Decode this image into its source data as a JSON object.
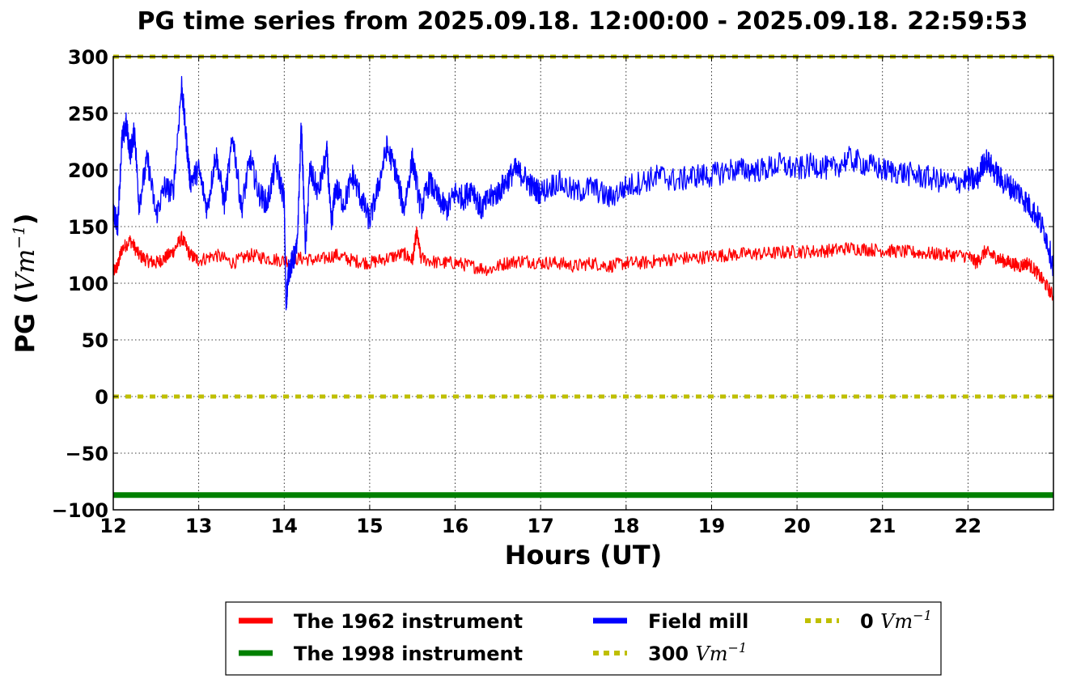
{
  "chart_data": {
    "type": "line",
    "title": "PG time series from 2025.09.18. 12:00:00 - 2025.09.18. 22:59:53",
    "xlabel": "Hours (UT)",
    "ylabel": {
      "prefix": "PG (",
      "unit": "Vm",
      "exp": "−1",
      "suffix": ")"
    },
    "xlim": [
      12,
      23
    ],
    "ylim": [
      -100,
      300
    ],
    "xticks": [
      12,
      13,
      14,
      15,
      16,
      17,
      18,
      19,
      20,
      21,
      22
    ],
    "xtick_labels": [
      "12",
      "13",
      "14",
      "15",
      "16",
      "17",
      "18",
      "19",
      "20",
      "21",
      "22"
    ],
    "yticks": [
      300,
      250,
      200,
      150,
      100,
      50,
      0,
      -50,
      -100
    ],
    "ytick_labels": [
      "300",
      "250",
      "200",
      "150",
      "100",
      "50",
      "0",
      "−50",
      "−100"
    ],
    "grid": true,
    "legend_placement": "bottom-center",
    "series": [
      {
        "name": "Field mill",
        "color": "#0000ff",
        "style": "solid",
        "x": [
          12.0,
          12.05,
          12.1,
          12.15,
          12.2,
          12.25,
          12.3,
          12.4,
          12.5,
          12.6,
          12.7,
          12.8,
          12.85,
          12.9,
          13.0,
          13.1,
          13.2,
          13.3,
          13.4,
          13.5,
          13.6,
          13.7,
          13.8,
          13.9,
          14.0,
          14.02,
          14.05,
          14.1,
          14.15,
          14.2,
          14.25,
          14.3,
          14.4,
          14.5,
          14.55,
          14.6,
          14.7,
          14.8,
          14.9,
          15.0,
          15.1,
          15.2,
          15.3,
          15.4,
          15.5,
          15.6,
          15.7,
          15.8,
          15.9,
          16.0,
          16.1,
          16.2,
          16.3,
          16.4,
          16.5,
          16.6,
          16.7,
          16.8,
          16.9,
          17.0,
          17.2,
          17.4,
          17.6,
          17.8,
          18.0,
          18.2,
          18.4,
          18.6,
          18.8,
          19.0,
          19.2,
          19.4,
          19.6,
          19.8,
          20.0,
          20.2,
          20.4,
          20.6,
          20.8,
          21.0,
          21.2,
          21.4,
          21.6,
          21.8,
          22.0,
          22.1,
          22.2,
          22.3,
          22.4,
          22.5,
          22.6,
          22.7,
          22.8,
          22.9,
          23.0
        ],
        "y": [
          165,
          150,
          225,
          240,
          215,
          235,
          170,
          210,
          160,
          185,
          180,
          275,
          230,
          190,
          200,
          165,
          215,
          170,
          230,
          165,
          210,
          180,
          170,
          205,
          175,
          80,
          110,
          120,
          130,
          240,
          130,
          200,
          180,
          215,
          150,
          185,
          170,
          195,
          175,
          155,
          185,
          220,
          200,
          165,
          210,
          165,
          190,
          175,
          165,
          180,
          175,
          185,
          165,
          175,
          180,
          190,
          200,
          195,
          185,
          180,
          190,
          180,
          185,
          175,
          185,
          190,
          195,
          190,
          195,
          195,
          200,
          200,
          200,
          205,
          200,
          205,
          200,
          210,
          205,
          200,
          198,
          195,
          192,
          188,
          192,
          190,
          210,
          200,
          190,
          185,
          180,
          170,
          160,
          145,
          115
        ]
      },
      {
        "name": "The 1962 instrument",
        "color": "#ff0000",
        "style": "solid",
        "x": [
          12.0,
          12.05,
          12.1,
          12.2,
          12.3,
          12.4,
          12.5,
          12.6,
          12.7,
          12.8,
          12.9,
          13.0,
          13.2,
          13.4,
          13.6,
          13.8,
          14.0,
          14.2,
          14.4,
          14.6,
          14.8,
          15.0,
          15.2,
          15.4,
          15.5,
          15.55,
          15.6,
          15.8,
          16.0,
          16.2,
          16.4,
          16.6,
          16.8,
          17.0,
          17.2,
          17.4,
          17.6,
          17.8,
          18.0,
          18.2,
          18.4,
          18.6,
          18.8,
          19.0,
          19.2,
          19.4,
          19.6,
          19.8,
          20.0,
          20.2,
          20.4,
          20.6,
          20.8,
          21.0,
          21.2,
          21.4,
          21.6,
          21.8,
          22.0,
          22.1,
          22.2,
          22.3,
          22.4,
          22.5,
          22.6,
          22.7,
          22.8,
          22.9,
          23.0
        ],
        "y": [
          110,
          115,
          130,
          138,
          125,
          120,
          118,
          122,
          128,
          140,
          125,
          120,
          125,
          118,
          125,
          122,
          120,
          122,
          120,
          125,
          120,
          118,
          122,
          126,
          120,
          145,
          122,
          118,
          118,
          115,
          112,
          118,
          120,
          118,
          118,
          115,
          118,
          115,
          118,
          118,
          120,
          122,
          122,
          124,
          125,
          126,
          126,
          127,
          128,
          128,
          129,
          131,
          130,
          129,
          128,
          127,
          126,
          125,
          124,
          118,
          128,
          124,
          120,
          118,
          115,
          118,
          110,
          100,
          88
        ]
      },
      {
        "name": "The 1998 instrument",
        "color": "#008000",
        "style": "solid",
        "x": [
          12.0,
          23.0
        ],
        "y": [
          -87,
          -87
        ]
      },
      {
        "name": "300",
        "color": "#bfbf00",
        "style": "dotted",
        "x": [
          12.0,
          23.0
        ],
        "y": [
          300,
          300
        ]
      },
      {
        "name": "0",
        "color": "#bfbf00",
        "style": "dotted",
        "x": [
          12.0,
          23.0
        ],
        "y": [
          0,
          0
        ]
      }
    ]
  },
  "legend": {
    "entries": [
      {
        "label": "The 1962 instrument",
        "unit": "",
        "exp": "",
        "color": "#ff0000",
        "style": "solid"
      },
      {
        "label": "The 1998 instrument",
        "unit": "",
        "exp": "",
        "color": "#008000",
        "style": "solid"
      },
      {
        "label": "Field mill",
        "unit": "",
        "exp": "",
        "color": "#0000ff",
        "style": "solid"
      },
      {
        "label": "300 ",
        "unit": "Vm",
        "exp": "−1",
        "color": "#bfbf00",
        "style": "dotted"
      },
      {
        "label": "0 ",
        "unit": "Vm",
        "exp": "−1",
        "color": "#bfbf00",
        "style": "dotted"
      }
    ]
  }
}
